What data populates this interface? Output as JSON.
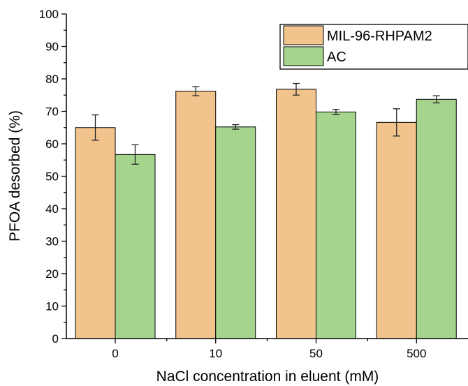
{
  "chart_data": {
    "type": "bar",
    "categories": [
      "0",
      "10",
      "50",
      "500"
    ],
    "series": [
      {
        "name": "MIL-96-RHPAM2",
        "color": "#F2C48D",
        "values": [
          65.0,
          76.2,
          76.8,
          66.6
        ],
        "errors": [
          3.9,
          1.4,
          1.8,
          4.2
        ]
      },
      {
        "name": "AC",
        "color": "#A4D48D",
        "values": [
          56.7,
          65.2,
          69.8,
          73.7
        ],
        "errors": [
          3.0,
          0.7,
          0.8,
          1.1
        ]
      }
    ],
    "xlabel": "NaCl concentration in eluent (mM)",
    "ylabel": "PFOA desorbed (%)",
    "ylim": [
      0,
      100
    ],
    "yticks": [
      "0",
      "10",
      "20",
      "30",
      "40",
      "50",
      "60",
      "70",
      "80",
      "90",
      "100"
    ],
    "grid": false,
    "legend_position": "top-right"
  }
}
